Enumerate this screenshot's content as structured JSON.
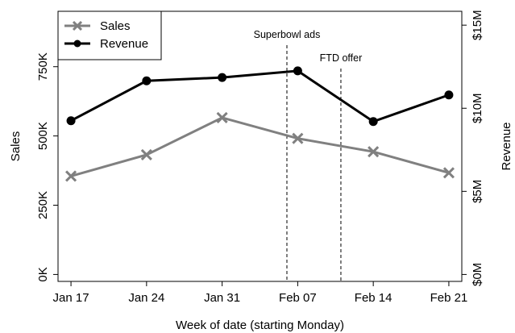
{
  "chart_data": {
    "type": "line",
    "title": "",
    "xlabel": "Week of date (starting Monday)",
    "ylabel": "Sales",
    "y2label": "Revenue",
    "categories": [
      "Jan 17",
      "Jan 24",
      "Jan 31",
      "Feb 07",
      "Feb 14",
      "Feb 21"
    ],
    "x_dates": [
      "2022-01-17",
      "2022-01-24",
      "2022-01-31",
      "2022-02-07",
      "2022-02-14",
      "2022-02-21"
    ],
    "ylim": [
      -25000,
      950000
    ],
    "y_ticks": [
      0,
      250000,
      500000,
      750000
    ],
    "y_tick_labels": [
      "0K",
      "250K",
      "500K",
      "750K"
    ],
    "y2lim": [
      -416667,
      15833333
    ],
    "y2_ticks": [
      0,
      5000000,
      10000000,
      15000000
    ],
    "y2_tick_labels": [
      "$0M",
      "$5M",
      "$10M",
      "$15M"
    ],
    "series": [
      {
        "name": "Sales",
        "axis": "left",
        "color": "#808080",
        "marker": "x",
        "values": [
          355000,
          432000,
          566000,
          491000,
          443000,
          367000
        ]
      },
      {
        "name": "Revenue",
        "axis": "right",
        "color": "#000000",
        "marker": "circle",
        "values": [
          9250000,
          11650000,
          11850000,
          12250000,
          9200000,
          10800000
        ]
      }
    ],
    "annotations": [
      {
        "text": "Superbowl ads",
        "date": "2022-02-06",
        "style": "dashed-vertical-line"
      },
      {
        "text": "FTD offer",
        "date": "2022-02-11",
        "style": "dashed-vertical-line"
      }
    ],
    "legend": {
      "position": "top-left"
    },
    "grid": false
  }
}
